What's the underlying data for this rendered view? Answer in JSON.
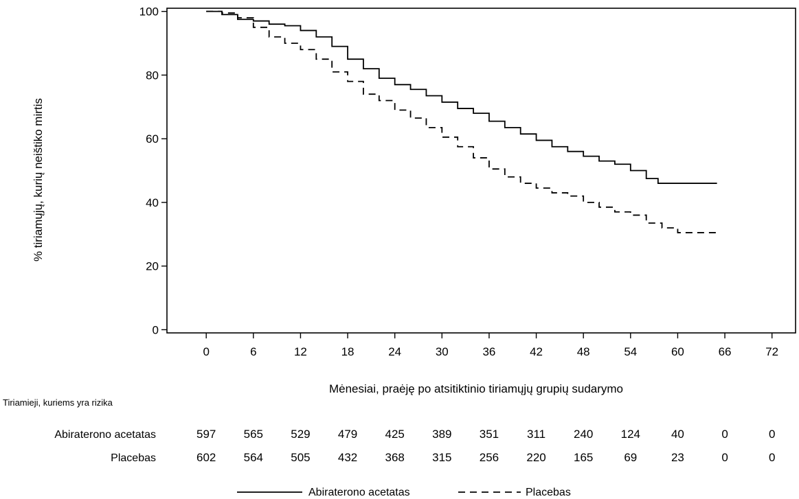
{
  "chart_data": {
    "type": "line",
    "xlabel": "Mėnesiai, praėję po atsitiktinio tiriamųjų grupių sudarymo",
    "ylabel": "% tiriamųjų, kurių neištiko mirtis",
    "xlim": [
      -5,
      75
    ],
    "ylim": [
      -1,
      101
    ],
    "x_ticks": [
      0,
      6,
      12,
      18,
      24,
      30,
      36,
      42,
      48,
      54,
      60,
      66,
      72
    ],
    "y_ticks": [
      0,
      20,
      40,
      60,
      80,
      100
    ],
    "grid": false,
    "legend_position": "bottom",
    "series": [
      {
        "name": "Abirateronо acetatas",
        "style": "solid",
        "points": [
          [
            0,
            100
          ],
          [
            2,
            99
          ],
          [
            4,
            97.5
          ],
          [
            6,
            97
          ],
          [
            8,
            96
          ],
          [
            10,
            95.5
          ],
          [
            12,
            94
          ],
          [
            14,
            92
          ],
          [
            16,
            89
          ],
          [
            18,
            85
          ],
          [
            20,
            82
          ],
          [
            22,
            79
          ],
          [
            24,
            77
          ],
          [
            26,
            75.5
          ],
          [
            28,
            73.5
          ],
          [
            30,
            71.5
          ],
          [
            32,
            69.5
          ],
          [
            34,
            68
          ],
          [
            36,
            65.5
          ],
          [
            38,
            63.5
          ],
          [
            40,
            61.5
          ],
          [
            42,
            59.5
          ],
          [
            44,
            57.5
          ],
          [
            46,
            56
          ],
          [
            48,
            54.5
          ],
          [
            50,
            53
          ],
          [
            52,
            52
          ],
          [
            54,
            50
          ],
          [
            56,
            47.5
          ],
          [
            57.5,
            46
          ],
          [
            65,
            46
          ]
        ]
      },
      {
        "name": "Placebas",
        "style": "dashed",
        "points": [
          [
            0,
            100
          ],
          [
            2,
            99.5
          ],
          [
            4,
            98
          ],
          [
            6,
            95
          ],
          [
            8,
            92
          ],
          [
            10,
            90
          ],
          [
            12,
            88
          ],
          [
            14,
            85
          ],
          [
            16,
            81
          ],
          [
            18,
            78
          ],
          [
            20,
            74
          ],
          [
            22,
            72
          ],
          [
            24,
            69
          ],
          [
            26,
            66.5
          ],
          [
            28,
            63.5
          ],
          [
            30,
            60.5
          ],
          [
            32,
            57.5
          ],
          [
            34,
            54
          ],
          [
            36,
            50.5
          ],
          [
            38,
            48
          ],
          [
            40,
            46
          ],
          [
            42,
            44.5
          ],
          [
            44,
            43
          ],
          [
            46,
            42
          ],
          [
            48,
            40
          ],
          [
            50,
            38.5
          ],
          [
            52,
            37
          ],
          [
            54,
            36
          ],
          [
            56,
            33.5
          ],
          [
            58,
            32
          ],
          [
            60,
            30.5
          ],
          [
            65,
            30
          ]
        ]
      }
    ],
    "risk_table": {
      "title": "Tiriamieji, kuriems yra rizika",
      "rows": [
        {
          "label": "Abiraterono acetatas",
          "values": [
            "597",
            "565",
            "529",
            "479",
            "425",
            "389",
            "351",
            "311",
            "240",
            "124",
            "40",
            "0",
            "0"
          ]
        },
        {
          "label": "Placebas",
          "values": [
            "602",
            "564",
            "505",
            "432",
            "368",
            "315",
            "256",
            "220",
            "165",
            "69",
            "23",
            "0",
            "0"
          ]
        }
      ]
    },
    "legend": [
      {
        "label": "Abiraterono acetatas",
        "style": "solid"
      },
      {
        "label": "Placebas",
        "style": "dashed"
      }
    ]
  }
}
